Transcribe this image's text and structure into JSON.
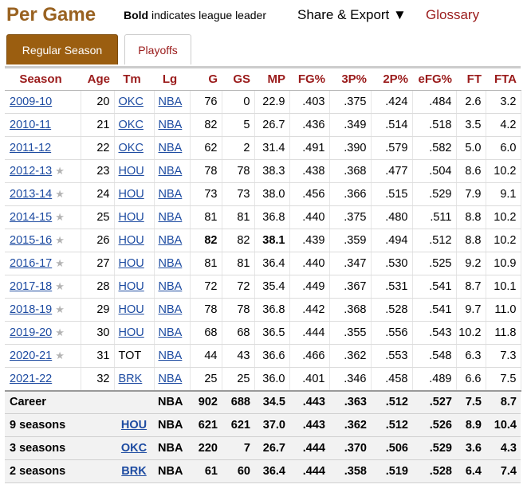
{
  "header": {
    "title": "Per Game",
    "bold_word": "Bold",
    "bold_note": " indicates league leader",
    "share_label": "Share & Export ▼",
    "glossary_label": "Glossary"
  },
  "tabs": [
    {
      "label": "Regular Season",
      "active": true
    },
    {
      "label": "Playoffs",
      "active": false
    }
  ],
  "table": {
    "columns": [
      "Season",
      "Age",
      "Tm",
      "Lg",
      "G",
      "GS",
      "MP",
      "FG%",
      "3P%",
      "2P%",
      "eFG%",
      "FT",
      "FTA"
    ],
    "rows": [
      {
        "season": "2009-10",
        "star": false,
        "age": "20",
        "tm": "OKC",
        "tm_link": true,
        "lg": "NBA",
        "g": "76",
        "gs": "0",
        "mp": "22.9",
        "fgp": ".403",
        "p3": ".375",
        "p2": ".424",
        "efg": ".484",
        "ft": "2.6",
        "fta": "3.2",
        "bold": []
      },
      {
        "season": "2010-11",
        "star": false,
        "age": "21",
        "tm": "OKC",
        "tm_link": true,
        "lg": "NBA",
        "g": "82",
        "gs": "5",
        "mp": "26.7",
        "fgp": ".436",
        "p3": ".349",
        "p2": ".514",
        "efg": ".518",
        "ft": "3.5",
        "fta": "4.2",
        "bold": []
      },
      {
        "season": "2011-12",
        "star": false,
        "age": "22",
        "tm": "OKC",
        "tm_link": true,
        "lg": "NBA",
        "g": "62",
        "gs": "2",
        "mp": "31.4",
        "fgp": ".491",
        "p3": ".390",
        "p2": ".579",
        "efg": ".582",
        "ft": "5.0",
        "fta": "6.0",
        "bold": []
      },
      {
        "season": "2012-13",
        "star": true,
        "age": "23",
        "tm": "HOU",
        "tm_link": true,
        "lg": "NBA",
        "g": "78",
        "gs": "78",
        "mp": "38.3",
        "fgp": ".438",
        "p3": ".368",
        "p2": ".477",
        "efg": ".504",
        "ft": "8.6",
        "fta": "10.2",
        "bold": []
      },
      {
        "season": "2013-14",
        "star": true,
        "age": "24",
        "tm": "HOU",
        "tm_link": true,
        "lg": "NBA",
        "g": "73",
        "gs": "73",
        "mp": "38.0",
        "fgp": ".456",
        "p3": ".366",
        "p2": ".515",
        "efg": ".529",
        "ft": "7.9",
        "fta": "9.1",
        "bold": []
      },
      {
        "season": "2014-15",
        "star": true,
        "age": "25",
        "tm": "HOU",
        "tm_link": true,
        "lg": "NBA",
        "g": "81",
        "gs": "81",
        "mp": "36.8",
        "fgp": ".440",
        "p3": ".375",
        "p2": ".480",
        "efg": ".511",
        "ft": "8.8",
        "fta": "10.2",
        "bold": []
      },
      {
        "season": "2015-16",
        "star": true,
        "age": "26",
        "tm": "HOU",
        "tm_link": true,
        "lg": "NBA",
        "g": "82",
        "gs": "82",
        "mp": "38.1",
        "fgp": ".439",
        "p3": ".359",
        "p2": ".494",
        "efg": ".512",
        "ft": "8.8",
        "fta": "10.2",
        "bold": [
          "g",
          "mp"
        ]
      },
      {
        "season": "2016-17",
        "star": true,
        "age": "27",
        "tm": "HOU",
        "tm_link": true,
        "lg": "NBA",
        "g": "81",
        "gs": "81",
        "mp": "36.4",
        "fgp": ".440",
        "p3": ".347",
        "p2": ".530",
        "efg": ".525",
        "ft": "9.2",
        "fta": "10.9",
        "bold": []
      },
      {
        "season": "2017-18",
        "star": true,
        "age": "28",
        "tm": "HOU",
        "tm_link": true,
        "lg": "NBA",
        "g": "72",
        "gs": "72",
        "mp": "35.4",
        "fgp": ".449",
        "p3": ".367",
        "p2": ".531",
        "efg": ".541",
        "ft": "8.7",
        "fta": "10.1",
        "bold": []
      },
      {
        "season": "2018-19",
        "star": true,
        "age": "29",
        "tm": "HOU",
        "tm_link": true,
        "lg": "NBA",
        "g": "78",
        "gs": "78",
        "mp": "36.8",
        "fgp": ".442",
        "p3": ".368",
        "p2": ".528",
        "efg": ".541",
        "ft": "9.7",
        "fta": "11.0",
        "bold": []
      },
      {
        "season": "2019-20",
        "star": true,
        "age": "30",
        "tm": "HOU",
        "tm_link": true,
        "lg": "NBA",
        "g": "68",
        "gs": "68",
        "mp": "36.5",
        "fgp": ".444",
        "p3": ".355",
        "p2": ".556",
        "efg": ".543",
        "ft": "10.2",
        "fta": "11.8",
        "bold": []
      },
      {
        "season": "2020-21",
        "star": true,
        "age": "31",
        "tm": "TOT",
        "tm_link": false,
        "lg": "NBA",
        "g": "44",
        "gs": "43",
        "mp": "36.6",
        "fgp": ".466",
        "p3": ".362",
        "p2": ".553",
        "efg": ".548",
        "ft": "6.3",
        "fta": "7.3",
        "bold": []
      },
      {
        "season": "2021-22",
        "star": false,
        "age": "32",
        "tm": "BRK",
        "tm_link": true,
        "lg": "NBA",
        "g": "25",
        "gs": "25",
        "mp": "36.0",
        "fgp": ".401",
        "p3": ".346",
        "p2": ".458",
        "efg": ".489",
        "ft": "6.6",
        "fta": "7.5",
        "bold": []
      }
    ],
    "footer": [
      {
        "season": "Career",
        "age": "",
        "tm": "",
        "tm_link": false,
        "lg": "NBA",
        "g": "902",
        "gs": "688",
        "mp": "34.5",
        "fgp": ".443",
        "p3": ".363",
        "p2": ".512",
        "efg": ".527",
        "ft": "7.5",
        "fta": "8.7"
      },
      {
        "season": "9 seasons",
        "age": "",
        "tm": "HOU",
        "tm_link": true,
        "lg": "NBA",
        "g": "621",
        "gs": "621",
        "mp": "37.0",
        "fgp": ".443",
        "p3": ".362",
        "p2": ".512",
        "efg": ".526",
        "ft": "8.9",
        "fta": "10.4"
      },
      {
        "season": "3 seasons",
        "age": "",
        "tm": "OKC",
        "tm_link": true,
        "lg": "NBA",
        "g": "220",
        "gs": "7",
        "mp": "26.7",
        "fgp": ".444",
        "p3": ".370",
        "p2": ".506",
        "efg": ".529",
        "ft": "3.6",
        "fta": "4.3"
      },
      {
        "season": "2 seasons",
        "age": "",
        "tm": "BRK",
        "tm_link": true,
        "lg": "NBA",
        "g": "61",
        "gs": "60",
        "mp": "36.4",
        "fgp": ".444",
        "p3": ".358",
        "p2": ".519",
        "efg": ".528",
        "ft": "6.4",
        "fta": "7.4"
      }
    ]
  },
  "star_glyph": "★"
}
